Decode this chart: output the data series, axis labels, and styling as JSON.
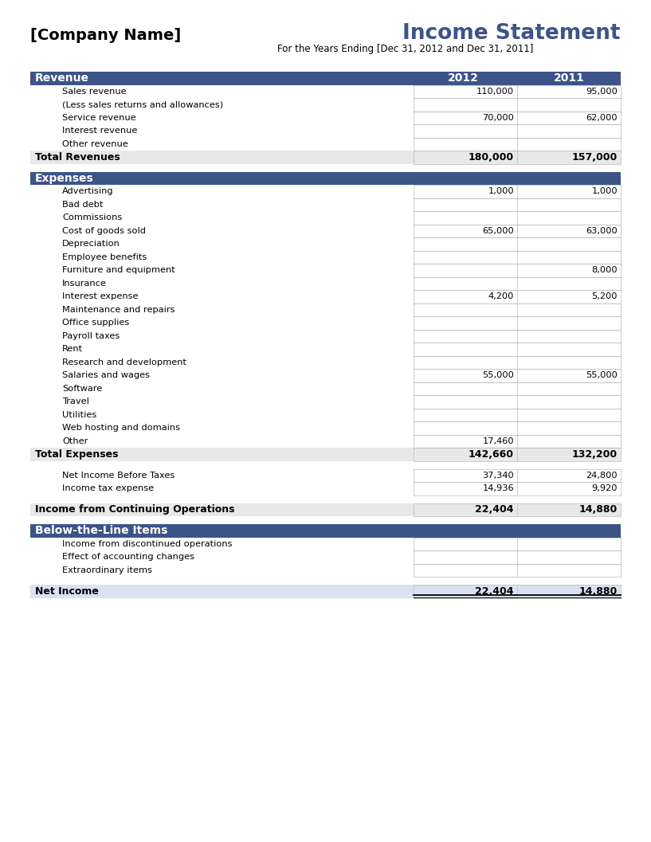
{
  "company_name": "[Company Name]",
  "title": "Income Statement",
  "subtitle": "For the Years Ending [Dec 31, 2012 and Dec 31, 2011]",
  "header_color": "#3D5488",
  "alt_row_color": "#E8E8E8",
  "white": "#FFFFFF",
  "light_blue_total": "#D9E1F2",
  "col2012": "2012",
  "col2011": "2011",
  "sections": [
    {
      "type": "header",
      "label": "Revenue",
      "val2012": "",
      "val2011": "",
      "show_years": true
    },
    {
      "type": "detail",
      "label": "Sales revenue",
      "val2012": "110,000",
      "val2011": "95,000",
      "indent": true
    },
    {
      "type": "detail",
      "label": "(Less sales returns and allowances)",
      "val2012": "",
      "val2011": "",
      "indent": true
    },
    {
      "type": "detail",
      "label": "Service revenue",
      "val2012": "70,000",
      "val2011": "62,000",
      "indent": true
    },
    {
      "type": "detail",
      "label": "Interest revenue",
      "val2012": "",
      "val2011": "",
      "indent": true
    },
    {
      "type": "detail",
      "label": "Other revenue",
      "val2012": "",
      "val2011": "",
      "indent": true
    },
    {
      "type": "total",
      "label": "Total Revenues",
      "val2012": "180,000",
      "val2011": "157,000"
    },
    {
      "type": "spacer"
    },
    {
      "type": "header",
      "label": "Expenses",
      "val2012": "",
      "val2011": "",
      "show_years": false
    },
    {
      "type": "detail",
      "label": "Advertising",
      "val2012": "1,000",
      "val2011": "1,000",
      "indent": true
    },
    {
      "type": "detail",
      "label": "Bad debt",
      "val2012": "",
      "val2011": "",
      "indent": true
    },
    {
      "type": "detail",
      "label": "Commissions",
      "val2012": "",
      "val2011": "",
      "indent": true
    },
    {
      "type": "detail",
      "label": "Cost of goods sold",
      "val2012": "65,000",
      "val2011": "63,000",
      "indent": true
    },
    {
      "type": "detail",
      "label": "Depreciation",
      "val2012": "",
      "val2011": "",
      "indent": true
    },
    {
      "type": "detail",
      "label": "Employee benefits",
      "val2012": "",
      "val2011": "",
      "indent": true
    },
    {
      "type": "detail",
      "label": "Furniture and equipment",
      "val2012": "",
      "val2011": "8,000",
      "indent": true
    },
    {
      "type": "detail",
      "label": "Insurance",
      "val2012": "",
      "val2011": "",
      "indent": true
    },
    {
      "type": "detail",
      "label": "Interest expense",
      "val2012": "4,200",
      "val2011": "5,200",
      "indent": true
    },
    {
      "type": "detail",
      "label": "Maintenance and repairs",
      "val2012": "",
      "val2011": "",
      "indent": true
    },
    {
      "type": "detail",
      "label": "Office supplies",
      "val2012": "",
      "val2011": "",
      "indent": true
    },
    {
      "type": "detail",
      "label": "Payroll taxes",
      "val2012": "",
      "val2011": "",
      "indent": true
    },
    {
      "type": "detail",
      "label": "Rent",
      "val2012": "",
      "val2011": "",
      "indent": true
    },
    {
      "type": "detail",
      "label": "Research and development",
      "val2012": "",
      "val2011": "",
      "indent": true
    },
    {
      "type": "detail",
      "label": "Salaries and wages",
      "val2012": "55,000",
      "val2011": "55,000",
      "indent": true
    },
    {
      "type": "detail",
      "label": "Software",
      "val2012": "",
      "val2011": "",
      "indent": true
    },
    {
      "type": "detail",
      "label": "Travel",
      "val2012": "",
      "val2011": "",
      "indent": true
    },
    {
      "type": "detail",
      "label": "Utilities",
      "val2012": "",
      "val2011": "",
      "indent": true
    },
    {
      "type": "detail",
      "label": "Web hosting and domains",
      "val2012": "",
      "val2011": "",
      "indent": true
    },
    {
      "type": "detail",
      "label": "Other",
      "val2012": "17,460",
      "val2011": "",
      "indent": true
    },
    {
      "type": "total",
      "label": "Total Expenses",
      "val2012": "142,660",
      "val2011": "132,200"
    },
    {
      "type": "spacer"
    },
    {
      "type": "detail2",
      "label": "Net Income Before Taxes",
      "val2012": "37,340",
      "val2011": "24,800",
      "indent": true
    },
    {
      "type": "detail2",
      "label": "Income tax expense",
      "val2012": "14,936",
      "val2011": "9,920",
      "indent": true
    },
    {
      "type": "spacer"
    },
    {
      "type": "bold_total",
      "label": "Income from Continuing Operations",
      "val2012": "22,404",
      "val2011": "14,880"
    },
    {
      "type": "spacer"
    },
    {
      "type": "header",
      "label": "Below-the-Line Items",
      "val2012": "",
      "val2011": "",
      "show_years": false
    },
    {
      "type": "detail",
      "label": "Income from discontinued operations",
      "val2012": "",
      "val2011": "",
      "indent": true
    },
    {
      "type": "detail",
      "label": "Effect of accounting changes",
      "val2012": "",
      "val2011": "",
      "indent": true
    },
    {
      "type": "detail",
      "label": "Extraordinary items",
      "val2012": "",
      "val2011": "",
      "indent": true
    },
    {
      "type": "spacer"
    },
    {
      "type": "net_income",
      "label": "Net Income",
      "val2012": "22,404",
      "val2011": "14,880"
    }
  ]
}
